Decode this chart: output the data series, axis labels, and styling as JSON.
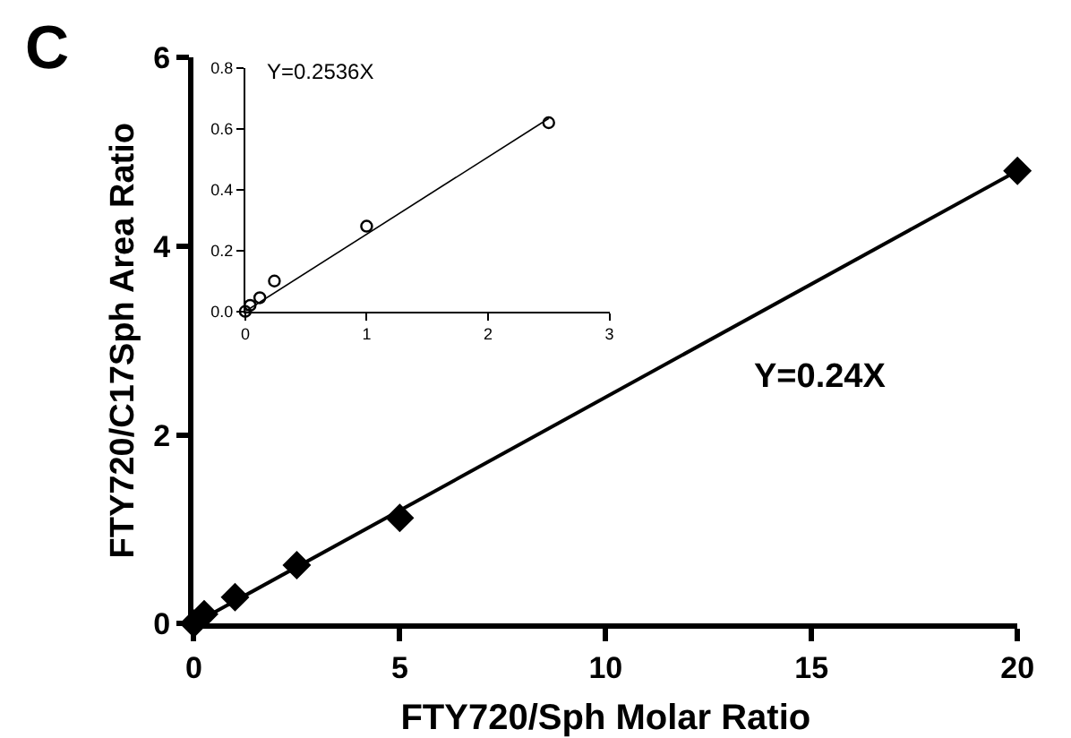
{
  "chart_data": [
    {
      "type": "scatter",
      "xlabel": "FTY720/Sph Molar Ratio",
      "ylabel": "FTY720/C17Sph Area Ratio",
      "annotations": [
        "C",
        "Y=0.24X"
      ],
      "xlim": [
        0,
        20
      ],
      "xticks": [
        0,
        5,
        10,
        15,
        20
      ],
      "ylim": [
        0,
        6
      ],
      "yticks": [
        0,
        2,
        4,
        6
      ],
      "series": [
        {
          "color": "#000000",
          "marker": "diamond",
          "x": [
            0,
            0.25,
            1,
            2.5,
            5,
            20
          ],
          "values": [
            0,
            0.1,
            0.28,
            0.62,
            1.12,
            4.8
          ]
        },
        {
          "type": "line",
          "color": "#000000",
          "marker": "none",
          "x": [
            0,
            20
          ],
          "values": [
            0,
            4.8
          ]
        }
      ]
    },
    {
      "type": "scatter",
      "annotations": [
        "Y=0.2536X"
      ],
      "xlim": [
        0,
        3
      ],
      "xticks": [
        0,
        1,
        2,
        3
      ],
      "ylim": [
        0,
        0.8
      ],
      "yticks": [
        {
          "value": 0,
          "label": "0.0"
        },
        {
          "value": 0.2,
          "label": "0.2"
        },
        {
          "value": 0.4,
          "label": "0.4"
        },
        {
          "value": 0.6,
          "label": "0.6"
        },
        {
          "value": 0.8,
          "label": "0.8"
        }
      ],
      "series": [
        {
          "color": "#000000",
          "marker": "circle",
          "x": [
            0,
            0.04,
            0.12,
            0.24,
            1,
            2.5
          ],
          "values": [
            0,
            0.02,
            0.045,
            0.1,
            0.28,
            0.62
          ]
        },
        {
          "type": "line",
          "color": "#000000",
          "marker": "none",
          "x": [
            0,
            2.5
          ],
          "values": [
            0,
            0.634
          ]
        }
      ]
    }
  ]
}
